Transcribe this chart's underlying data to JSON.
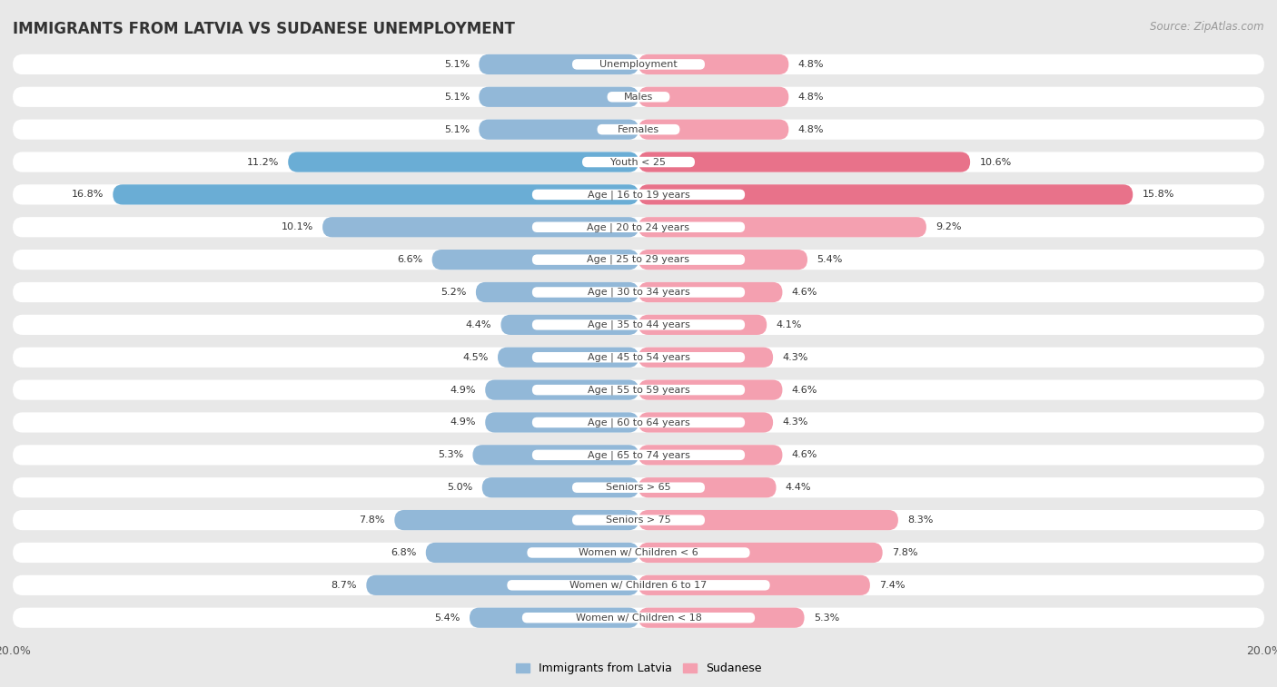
{
  "title": "IMMIGRANTS FROM LATVIA VS SUDANESE UNEMPLOYMENT",
  "source": "Source: ZipAtlas.com",
  "categories": [
    "Unemployment",
    "Males",
    "Females",
    "Youth < 25",
    "Age | 16 to 19 years",
    "Age | 20 to 24 years",
    "Age | 25 to 29 years",
    "Age | 30 to 34 years",
    "Age | 35 to 44 years",
    "Age | 45 to 54 years",
    "Age | 55 to 59 years",
    "Age | 60 to 64 years",
    "Age | 65 to 74 years",
    "Seniors > 65",
    "Seniors > 75",
    "Women w/ Children < 6",
    "Women w/ Children 6 to 17",
    "Women w/ Children < 18"
  ],
  "latvia_values": [
    5.1,
    5.1,
    5.1,
    11.2,
    16.8,
    10.1,
    6.6,
    5.2,
    4.4,
    4.5,
    4.9,
    4.9,
    5.3,
    5.0,
    7.8,
    6.8,
    8.7,
    5.4
  ],
  "sudanese_values": [
    4.8,
    4.8,
    4.8,
    10.6,
    15.8,
    9.2,
    5.4,
    4.6,
    4.1,
    4.3,
    4.6,
    4.3,
    4.6,
    4.4,
    8.3,
    7.8,
    7.4,
    5.3
  ],
  "latvia_color": "#92b8d8",
  "sudanese_color": "#f4a0b0",
  "latvia_highlight_color": "#6aadd5",
  "sudanese_highlight_color": "#e8728a",
  "highlight_rows": [
    3,
    4
  ],
  "background_color": "#e8e8e8",
  "row_bg_color": "#ffffff",
  "row_bg_light": "#f0f0f0",
  "xlim": 20.0,
  "legend_label_latvia": "Immigrants from Latvia",
  "legend_label_sudanese": "Sudanese",
  "title_fontsize": 12,
  "source_fontsize": 8.5,
  "label_fontsize": 8,
  "category_fontsize": 8
}
